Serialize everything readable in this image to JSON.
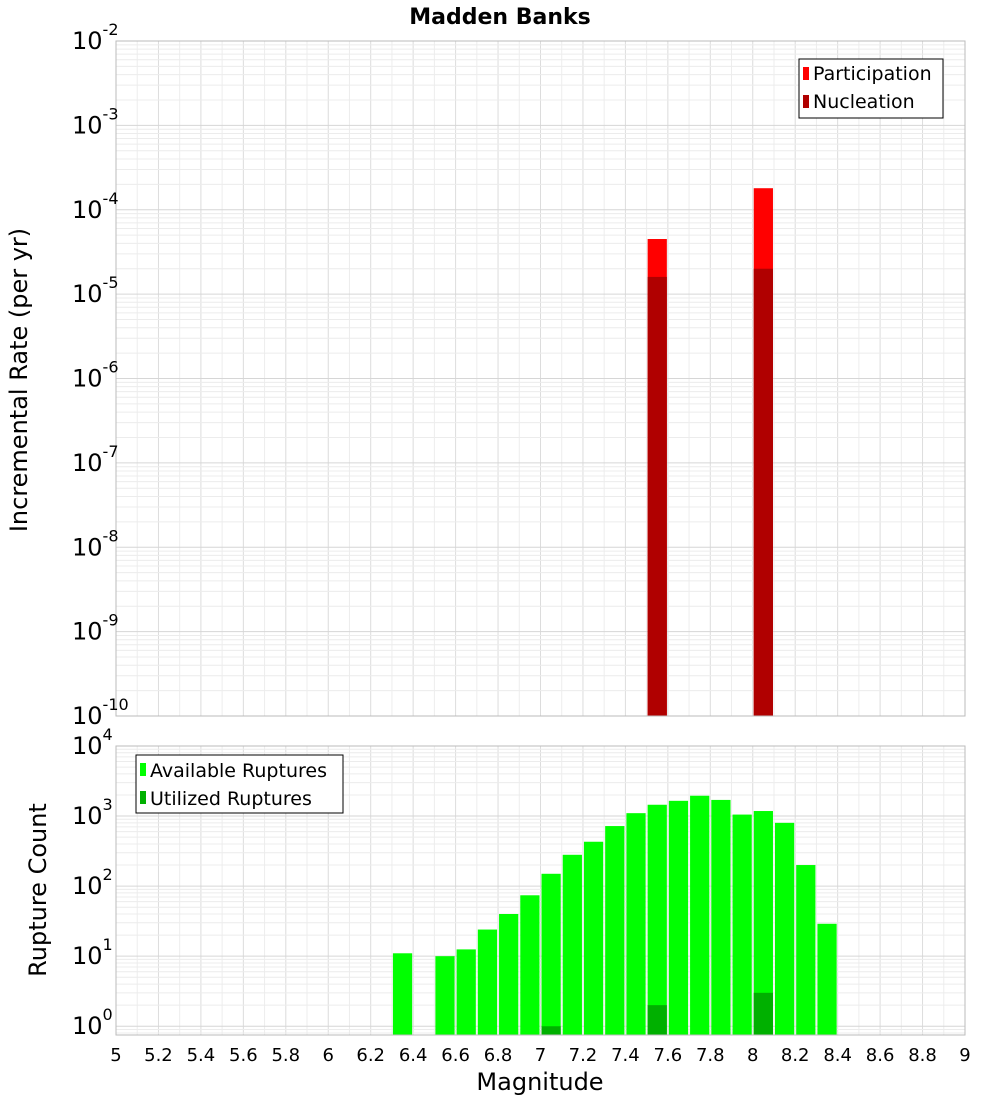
{
  "chart_data": [
    {
      "type": "bar",
      "title": "Madden Banks",
      "xlabel": "",
      "ylabel": "Incremental Rate (per yr)",
      "yscale": "log",
      "ylim": [
        1e-10,
        0.01
      ],
      "xlim": [
        5,
        9
      ],
      "grid": true,
      "legend_position": "top-right",
      "yticks": [
        {
          "base": "10",
          "exp": "-10"
        },
        {
          "base": "10",
          "exp": "-9"
        },
        {
          "base": "10",
          "exp": "-8"
        },
        {
          "base": "10",
          "exp": "-7"
        },
        {
          "base": "10",
          "exp": "-6"
        },
        {
          "base": "10",
          "exp": "-5"
        },
        {
          "base": "10",
          "exp": "-4"
        },
        {
          "base": "10",
          "exp": "-3"
        },
        {
          "base": "10",
          "exp": "-2"
        }
      ],
      "series": [
        {
          "name": "Participation",
          "color": "#ff0000",
          "points": [
            {
              "x": 7.55,
              "y": 4.5e-05
            },
            {
              "x": 8.05,
              "y": 0.00018
            }
          ]
        },
        {
          "name": "Nucleation",
          "color": "#b00000",
          "points": [
            {
              "x": 7.55,
              "y": 1.6e-05
            },
            {
              "x": 8.05,
              "y": 2e-05
            }
          ]
        }
      ]
    },
    {
      "type": "bar",
      "title": "",
      "xlabel": "Magnitude",
      "ylabel": "Rupture Count",
      "yscale": "log",
      "ylim": [
        0.75,
        10000
      ],
      "xlim": [
        5,
        9
      ],
      "grid": true,
      "legend_position": "top-left",
      "yticks": [
        {
          "base": "10",
          "exp": "0"
        },
        {
          "base": "10",
          "exp": "1"
        },
        {
          "base": "10",
          "exp": "2"
        },
        {
          "base": "10",
          "exp": "3"
        },
        {
          "base": "10",
          "exp": "4"
        }
      ],
      "xticks": [
        "5",
        "5.2",
        "5.4",
        "5.6",
        "5.8",
        "6",
        "6.2",
        "6.4",
        "6.6",
        "6.8",
        "7",
        "7.2",
        "7.4",
        "7.6",
        "7.8",
        "8",
        "8.2",
        "8.4",
        "8.6",
        "8.8",
        "9"
      ],
      "series": [
        {
          "name": "Available Ruptures",
          "color": "#00ff00",
          "points": [
            {
              "x": 6.35,
              "y": 11
            },
            {
              "x": 6.55,
              "y": 10
            },
            {
              "x": 6.65,
              "y": 12.5
            },
            {
              "x": 6.75,
              "y": 24
            },
            {
              "x": 6.85,
              "y": 40
            },
            {
              "x": 6.95,
              "y": 74
            },
            {
              "x": 7.05,
              "y": 150
            },
            {
              "x": 7.15,
              "y": 280
            },
            {
              "x": 7.25,
              "y": 430
            },
            {
              "x": 7.35,
              "y": 720
            },
            {
              "x": 7.45,
              "y": 1100
            },
            {
              "x": 7.55,
              "y": 1450
            },
            {
              "x": 7.65,
              "y": 1650
            },
            {
              "x": 7.75,
              "y": 1950
            },
            {
              "x": 7.85,
              "y": 1700
            },
            {
              "x": 7.95,
              "y": 1050
            },
            {
              "x": 8.05,
              "y": 1180
            },
            {
              "x": 8.15,
              "y": 800
            },
            {
              "x": 8.25,
              "y": 200
            },
            {
              "x": 8.35,
              "y": 29
            }
          ]
        },
        {
          "name": "Utilized Ruptures",
          "color": "#00b000",
          "points": [
            {
              "x": 7.05,
              "y": 1
            },
            {
              "x": 7.55,
              "y": 2
            },
            {
              "x": 8.05,
              "y": 3
            }
          ]
        }
      ]
    }
  ]
}
